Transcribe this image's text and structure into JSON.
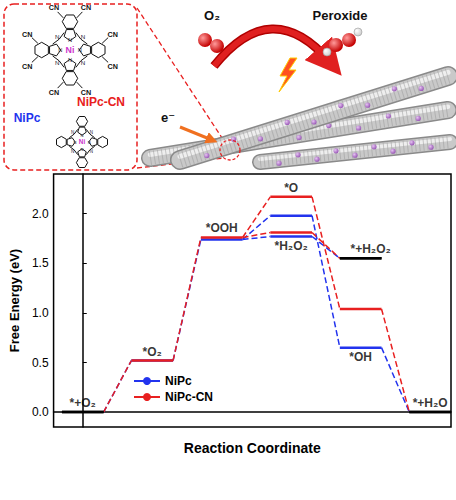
{
  "illustration": {
    "molecules": [
      {
        "label": "NiPc-CN",
        "color": "#e82020",
        "metal": "Ni",
        "atom": "N",
        "substituent": "CN"
      },
      {
        "label": "NiPc",
        "color": "#2233ee",
        "metal": "Ni",
        "atom": "N"
      }
    ],
    "reactant": "O₂",
    "product": "Peroxide",
    "electron": "e⁻"
  },
  "chart_data": {
    "type": "free_energy_diagram",
    "xlabel": "Reaction Coordinate",
    "ylabel": "Free Energy (eV)",
    "ylim": [
      -0.15,
      2.4
    ],
    "yticks": [
      {
        "value": 0,
        "label": "0.0"
      },
      {
        "value": 0.5,
        "label": "0.5"
      },
      {
        "value": 1,
        "label": "1.0"
      },
      {
        "value": 1.5,
        "label": "1.5"
      },
      {
        "value": 2,
        "label": "2.0"
      }
    ],
    "grid": false,
    "tick_labels": "y",
    "legend": "lower left",
    "line_style": "dashed",
    "steps": [
      [
        {
          "label": "*+O₂",
          "color": "#000000"
        }
      ],
      [
        {
          "label": "*O₂"
        }
      ],
      [
        {
          "label": "*OOH"
        }
      ],
      [
        {
          "label": "*O"
        },
        {
          "label": "*H₂O₂"
        }
      ],
      [
        {
          "label": "*+H₂O₂",
          "color": "#000000"
        },
        {
          "label": "*OH"
        }
      ],
      [
        {
          "label": "*+H₂O",
          "color": "#000000"
        }
      ]
    ],
    "pathways": [
      [
        "*+O₂",
        "*O₂",
        "*OOH",
        "*O",
        "*OH",
        "*+H₂O"
      ],
      [
        "*OOH",
        "*H₂O₂",
        "*+H₂O₂"
      ]
    ],
    "series": [
      {
        "name": "NiPc",
        "color": "#2233ee",
        "values": [
          0,
          0.52,
          1.74,
          1.98,
          1.77,
          1.55,
          0.65,
          0
        ]
      },
      {
        "name": "NiPc-CN",
        "color": "#e82020",
        "values": [
          0,
          0.52,
          1.76,
          2.17,
          1.81,
          1.55,
          1.04,
          0
        ]
      }
    ]
  }
}
